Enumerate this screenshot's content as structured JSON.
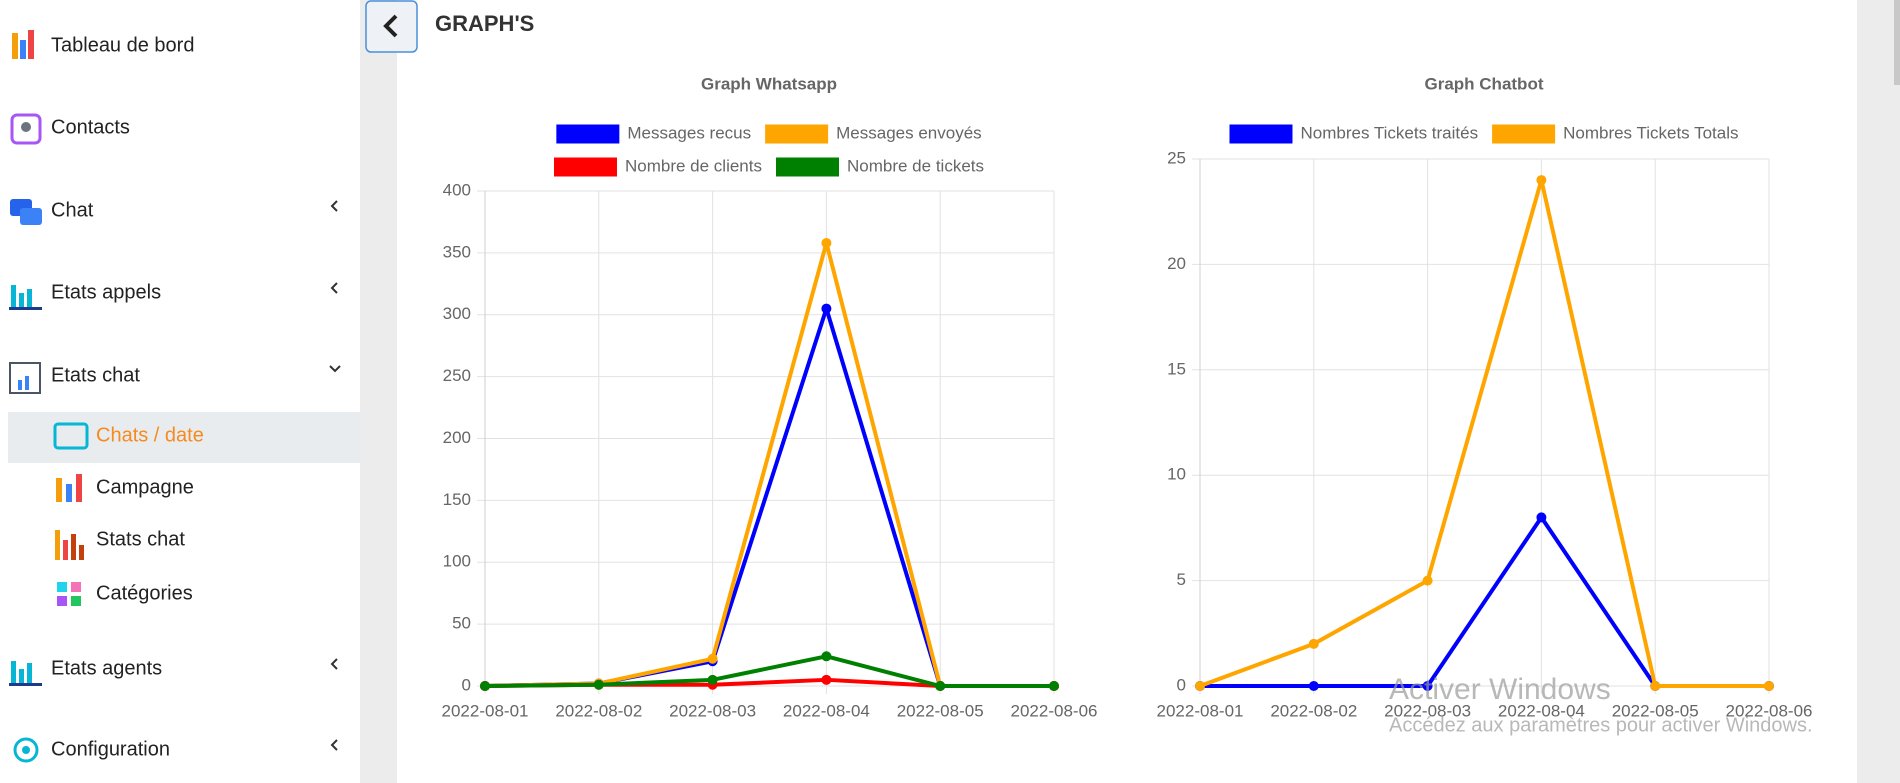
{
  "sidebar": {
    "items": [
      "Tableau de bord",
      "Contacts",
      "Chat",
      "Etats appels",
      "Etats chat",
      "Chats / date",
      "Campagne",
      "Stats chat",
      "Catégories",
      "Etats agents",
      "Configuration"
    ]
  },
  "header": {
    "title": "GRAPH'S"
  },
  "chart_data": [
    {
      "type": "line",
      "title": "Graph Whatsapp",
      "categories": [
        "2022-08-01",
        "2022-08-02",
        "2022-08-03",
        "2022-08-04",
        "2022-08-05",
        "2022-08-06"
      ],
      "series": [
        {
          "name": "Messages recus",
          "color": "#0000ff",
          "values": [
            0,
            2,
            20,
            305,
            0,
            0
          ]
        },
        {
          "name": "Messages envoyés",
          "color": "#ffa500",
          "values": [
            0,
            2,
            22,
            358,
            0,
            0
          ]
        },
        {
          "name": "Nombre de clients",
          "color": "#ff0000",
          "values": [
            0,
            1,
            1,
            5,
            0,
            0
          ]
        },
        {
          "name": "Nombre de tickets",
          "color": "#008000",
          "values": [
            0,
            1,
            5,
            24,
            0,
            0
          ]
        }
      ],
      "ylim": [
        0,
        400
      ],
      "yticks": [
        0,
        50,
        100,
        150,
        200,
        250,
        300,
        350,
        400
      ],
      "grid": true,
      "legend": "top"
    },
    {
      "type": "line",
      "title": "Graph Chatbot",
      "categories": [
        "2022-08-01",
        "2022-08-02",
        "2022-08-03",
        "2022-08-04",
        "2022-08-05",
        "2022-08-06"
      ],
      "series": [
        {
          "name": "Nombres Tickets traités",
          "color": "#0000ff",
          "values": [
            0,
            0,
            0,
            8,
            0,
            0
          ]
        },
        {
          "name": "Nombres Tickets Totals",
          "color": "#ffa500",
          "values": [
            0,
            2,
            5,
            24,
            0,
            0
          ]
        }
      ],
      "ylim": [
        0,
        25
      ],
      "yticks": [
        0,
        5,
        10,
        15,
        20,
        25
      ],
      "grid": true,
      "legend": "top"
    }
  ],
  "watermark": {
    "title": "Activer Windows",
    "text": "Accédez aux paramètres pour activer Windows."
  }
}
